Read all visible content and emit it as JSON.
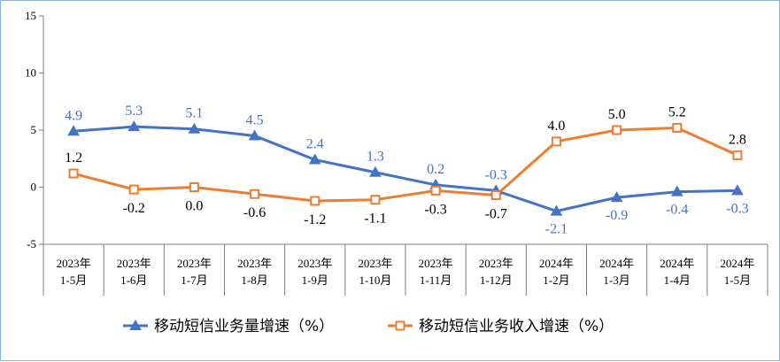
{
  "chart_data": {
    "type": "line",
    "categories": [
      [
        "2023年",
        "1-5月"
      ],
      [
        "2023年",
        "1-6月"
      ],
      [
        "2023年",
        "1-7月"
      ],
      [
        "2023年",
        "1-8月"
      ],
      [
        "2023年",
        "1-9月"
      ],
      [
        "2023年",
        "1-10月"
      ],
      [
        "2023年",
        "1-11月"
      ],
      [
        "2023年",
        "1-12月"
      ],
      [
        "2024年",
        "1-2月"
      ],
      [
        "2024年",
        "1-3月"
      ],
      [
        "2024年",
        "1-4月"
      ],
      [
        "2024年",
        "1-5月"
      ]
    ],
    "series": [
      {
        "name": "移动短信业务量增速（%）",
        "values": [
          4.9,
          5.3,
          5.1,
          4.5,
          2.4,
          1.3,
          0.2,
          -0.3,
          -2.1,
          -0.9,
          -0.4,
          -0.3
        ],
        "labels": [
          "4.9",
          "5.3",
          "5.1",
          "4.5",
          "2.4",
          "1.3",
          "0.2",
          "-0.3",
          "-2.1",
          "-0.9",
          "-0.4",
          "-0.3"
        ],
        "color": "#4472c4",
        "marker": "triangle"
      },
      {
        "name": "移动短信业务收入增速（%）",
        "values": [
          1.2,
          -0.2,
          0.0,
          -0.6,
          -1.2,
          -1.1,
          -0.3,
          -0.7,
          4.0,
          5.0,
          5.2,
          2.8
        ],
        "labels": [
          "1.2",
          "-0.2",
          "0.0",
          "-0.6",
          "-1.2",
          "-1.1",
          "-0.3",
          "-0.7",
          "4.0",
          "5.0",
          "5.2",
          "2.8"
        ],
        "color": "#ed7d31",
        "marker": "square"
      }
    ],
    "ylim": [
      -5,
      15
    ],
    "yticks": [
      "15",
      "10",
      "5",
      "0",
      "-5"
    ],
    "ytick_values": [
      15,
      10,
      5,
      0,
      -5
    ],
    "grid": false,
    "legend_position": "bottom"
  }
}
